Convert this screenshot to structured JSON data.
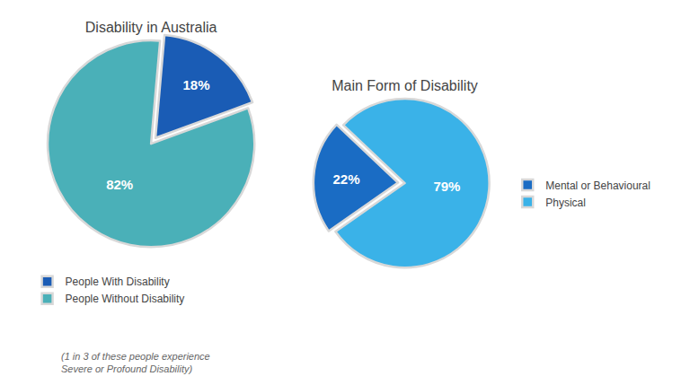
{
  "chart_data": [
    {
      "type": "pie",
      "title": "Disability in Australia",
      "categories": [
        "People With Disability",
        "People Without Disability"
      ],
      "values": [
        18,
        82
      ],
      "value_labels": [
        "18%",
        "82%"
      ],
      "colors": [
        "#1a5cb5",
        "#4ab0b8"
      ],
      "data_labels": true,
      "legend": "bottom",
      "annotations": [
        "(1 in 3 of these people experience\nSevere or Profound Disability)"
      ]
    },
    {
      "type": "pie",
      "title": "Main Form of Disability",
      "categories": [
        "Mental or Behavioural",
        "Physical"
      ],
      "values": [
        22,
        79
      ],
      "value_labels": [
        "22%",
        "79%"
      ],
      "colors": [
        "#1a6cc4",
        "#3ab2e8"
      ],
      "data_labels": true,
      "legend": "right"
    }
  ]
}
